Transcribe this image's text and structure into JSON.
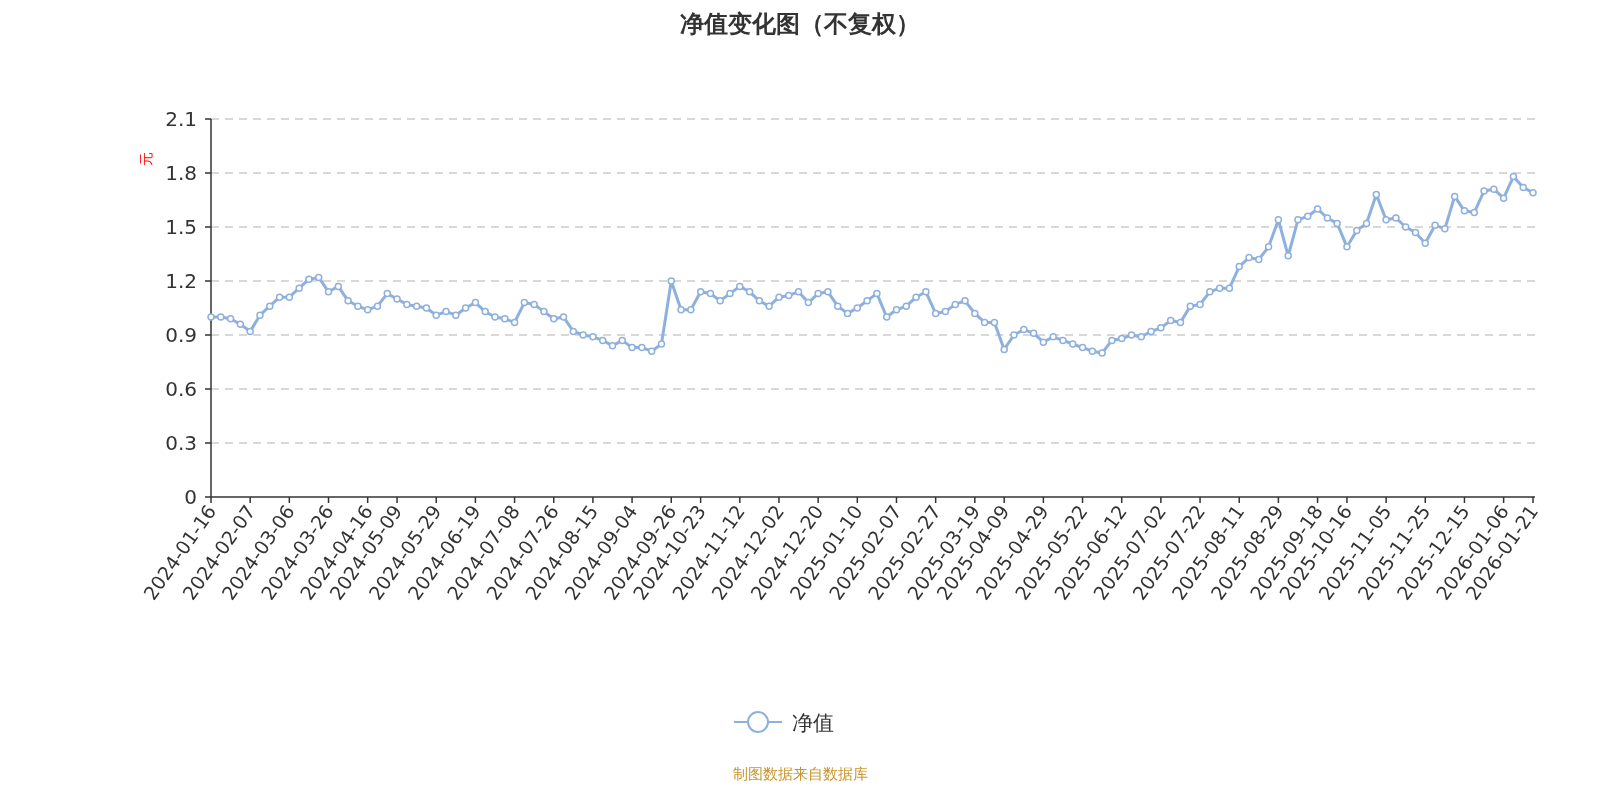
{
  "chart_data": {
    "type": "line",
    "title": "净值变化图（不复权）",
    "ylabel": "元",
    "categories": [
      "2024-01-16",
      null,
      null,
      null,
      "2024-02-07",
      null,
      null,
      null,
      "2024-03-06",
      null,
      null,
      null,
      "2024-03-26",
      null,
      null,
      null,
      "2024-04-16",
      null,
      null,
      "2024-05-09",
      null,
      null,
      null,
      "2024-05-29",
      null,
      null,
      null,
      "2024-06-19",
      null,
      null,
      null,
      "2024-07-08",
      null,
      null,
      null,
      "2024-07-26",
      null,
      null,
      null,
      "2024-08-15",
      null,
      null,
      null,
      "2024-09-04",
      null,
      null,
      null,
      "2024-09-26",
      null,
      null,
      "2024-10-23",
      null,
      null,
      null,
      "2024-11-12",
      null,
      null,
      null,
      "2024-12-02",
      null,
      null,
      null,
      "2024-12-20",
      null,
      null,
      null,
      "2025-01-10",
      null,
      null,
      null,
      "2025-02-07",
      null,
      null,
      null,
      "2025-02-27",
      null,
      null,
      null,
      "2025-03-19",
      null,
      null,
      "2025-04-09",
      null,
      null,
      null,
      "2025-04-29",
      null,
      null,
      null,
      "2025-05-22",
      null,
      null,
      null,
      "2025-06-12",
      null,
      null,
      null,
      "2025-07-02",
      null,
      null,
      null,
      "2025-07-22",
      null,
      null,
      null,
      "2025-08-11",
      null,
      null,
      null,
      "2025-08-29",
      null,
      null,
      null,
      "2025-09-18",
      null,
      null,
      "2025-10-16",
      null,
      null,
      null,
      "2025-11-05",
      null,
      null,
      null,
      "2025-11-25",
      null,
      null,
      null,
      "2025-12-15",
      null,
      null,
      null,
      "2026-01-06",
      null,
      null,
      "2026-01-21"
    ],
    "series": [
      {
        "name": "净值",
        "color": "#8eb0de",
        "values": [
          1.0,
          1.0,
          0.99,
          0.96,
          0.92,
          1.01,
          1.06,
          1.11,
          1.11,
          1.16,
          1.21,
          1.22,
          1.14,
          1.17,
          1.09,
          1.06,
          1.04,
          1.06,
          1.13,
          1.1,
          1.07,
          1.06,
          1.05,
          1.01,
          1.03,
          1.01,
          1.05,
          1.08,
          1.03,
          1.0,
          0.99,
          0.97,
          1.08,
          1.07,
          1.03,
          0.99,
          1.0,
          0.92,
          0.9,
          0.89,
          0.87,
          0.84,
          0.87,
          0.83,
          0.83,
          0.81,
          0.85,
          1.2,
          1.04,
          1.04,
          1.14,
          1.13,
          1.09,
          1.13,
          1.17,
          1.14,
          1.09,
          1.06,
          1.11,
          1.12,
          1.14,
          1.08,
          1.13,
          1.14,
          1.06,
          1.02,
          1.05,
          1.09,
          1.13,
          1.0,
          1.04,
          1.06,
          1.11,
          1.14,
          1.02,
          1.03,
          1.07,
          1.09,
          1.02,
          0.97,
          0.97,
          0.82,
          0.9,
          0.93,
          0.91,
          0.86,
          0.89,
          0.87,
          0.85,
          0.83,
          0.81,
          0.8,
          0.87,
          0.88,
          0.9,
          0.89,
          0.92,
          0.94,
          0.98,
          0.97,
          1.06,
          1.07,
          1.14,
          1.16,
          1.16,
          1.28,
          1.33,
          1.32,
          1.39,
          1.54,
          1.34,
          1.54,
          1.56,
          1.6,
          1.55,
          1.52,
          1.39,
          1.48,
          1.52,
          1.68,
          1.54,
          1.55,
          1.5,
          1.47,
          1.41,
          1.51,
          1.49,
          1.67,
          1.59,
          1.58,
          1.7,
          1.71,
          1.66,
          1.78,
          1.72,
          1.69
        ]
      }
    ],
    "ylim": [
      0,
      2.1
    ],
    "yticks": [
      0,
      0.3,
      0.6,
      0.9,
      1.2,
      1.5,
      1.8,
      2.1
    ],
    "grid": "y",
    "legend": "bottom",
    "marker": "circle",
    "line_style": "solid",
    "annotations": [
      "制图数据来自数据库"
    ]
  }
}
